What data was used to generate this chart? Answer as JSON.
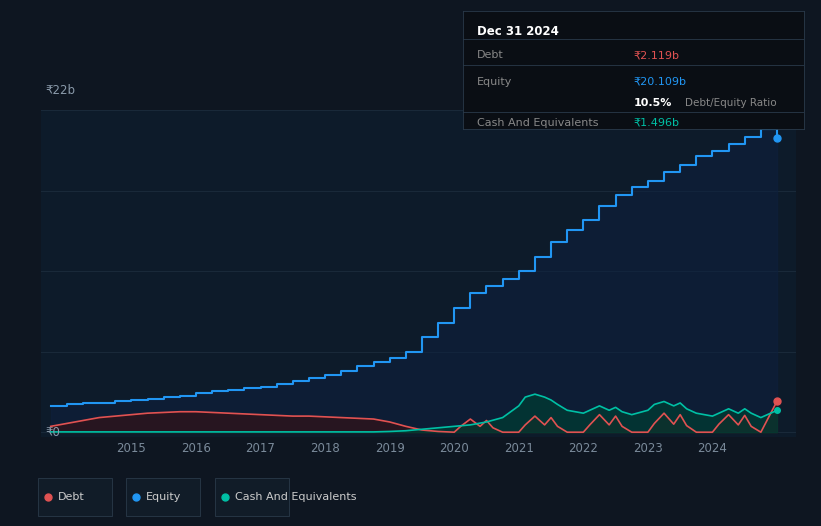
{
  "bg_color": "#0e1621",
  "plot_bg_color": "#0d1b2a",
  "grid_color": "#1a2a3a",
  "title": "Dec 31 2024",
  "y_label": "₹22b",
  "y_zero_label": "₹0",
  "x_ticks": [
    2015,
    2016,
    2017,
    2018,
    2019,
    2020,
    2021,
    2022,
    2023,
    2024
  ],
  "debt_color": "#e05252",
  "equity_color": "#2196f3",
  "cash_color": "#00bfa5",
  "debt_fill_color": "#3d1010",
  "equity_fill_color": "#0d2040",
  "cash_fill_color": "#003d33",
  "tooltip_bg": "#0a0e14",
  "tooltip_border": "#2a3a4a",
  "tooltip_title_color": "#ffffff",
  "tooltip_label_color": "#888888",
  "tooltip_debt_color": "#e05252",
  "tooltip_equity_color": "#2196f3",
  "tooltip_cash_color": "#00bfa5",
  "tooltip_ratio_bold_color": "#ffffff",
  "tooltip_ratio_text_color": "#888888",
  "ylim": [
    -0.3,
    22
  ],
  "xlim_start": 2013.6,
  "xlim_end": 2025.3,
  "equity_x": [
    2013.75,
    2014.0,
    2014.25,
    2014.5,
    2014.75,
    2015.0,
    2015.25,
    2015.5,
    2015.75,
    2016.0,
    2016.25,
    2016.5,
    2016.75,
    2017.0,
    2017.25,
    2017.5,
    2017.75,
    2018.0,
    2018.25,
    2018.5,
    2018.75,
    2019.0,
    2019.25,
    2019.5,
    2019.75,
    2020.0,
    2020.25,
    2020.5,
    2020.75,
    2021.0,
    2021.25,
    2021.5,
    2021.75,
    2022.0,
    2022.25,
    2022.5,
    2022.75,
    2023.0,
    2023.25,
    2023.5,
    2023.75,
    2024.0,
    2024.25,
    2024.5,
    2024.75,
    2025.0
  ],
  "equity_y": [
    1.8,
    1.9,
    2.0,
    2.0,
    2.1,
    2.2,
    2.3,
    2.4,
    2.5,
    2.7,
    2.8,
    2.9,
    3.0,
    3.1,
    3.3,
    3.5,
    3.7,
    3.9,
    4.2,
    4.5,
    4.8,
    5.1,
    5.5,
    6.5,
    7.5,
    8.5,
    9.5,
    10.0,
    10.5,
    11.0,
    12.0,
    13.0,
    13.8,
    14.5,
    15.5,
    16.2,
    16.8,
    17.2,
    17.8,
    18.3,
    18.9,
    19.2,
    19.7,
    20.2,
    20.7,
    20.109
  ],
  "debt_x": [
    2013.75,
    2014.0,
    2014.25,
    2014.5,
    2014.75,
    2015.0,
    2015.25,
    2015.5,
    2015.75,
    2016.0,
    2016.25,
    2016.5,
    2016.75,
    2017.0,
    2017.25,
    2017.5,
    2017.75,
    2018.0,
    2018.25,
    2018.5,
    2018.75,
    2019.0,
    2019.25,
    2019.5,
    2019.75,
    2020.0,
    2020.1,
    2020.25,
    2020.4,
    2020.5,
    2020.6,
    2020.75,
    2021.0,
    2021.1,
    2021.25,
    2021.4,
    2021.5,
    2021.6,
    2021.75,
    2022.0,
    2022.1,
    2022.25,
    2022.4,
    2022.5,
    2022.6,
    2022.75,
    2023.0,
    2023.1,
    2023.25,
    2023.4,
    2023.5,
    2023.6,
    2023.75,
    2024.0,
    2024.1,
    2024.25,
    2024.4,
    2024.5,
    2024.6,
    2024.75,
    2025.0
  ],
  "debt_y": [
    0.4,
    0.6,
    0.8,
    1.0,
    1.1,
    1.2,
    1.3,
    1.35,
    1.4,
    1.4,
    1.35,
    1.3,
    1.25,
    1.2,
    1.15,
    1.1,
    1.1,
    1.05,
    1.0,
    0.95,
    0.9,
    0.7,
    0.4,
    0.15,
    0.05,
    0.0,
    0.4,
    0.9,
    0.4,
    0.8,
    0.3,
    0.0,
    0.0,
    0.5,
    1.1,
    0.5,
    1.0,
    0.4,
    0.0,
    0.0,
    0.5,
    1.2,
    0.5,
    1.1,
    0.4,
    0.0,
    0.0,
    0.6,
    1.3,
    0.55,
    1.2,
    0.45,
    0.0,
    0.0,
    0.55,
    1.2,
    0.5,
    1.15,
    0.4,
    0.0,
    2.119
  ],
  "cash_x": [
    2013.75,
    2014.0,
    2014.25,
    2014.5,
    2014.75,
    2015.0,
    2015.25,
    2015.5,
    2015.75,
    2016.0,
    2016.25,
    2016.5,
    2016.75,
    2017.0,
    2017.25,
    2017.5,
    2017.75,
    2018.0,
    2018.25,
    2018.5,
    2018.75,
    2019.0,
    2019.25,
    2019.5,
    2019.75,
    2020.0,
    2020.25,
    2020.5,
    2020.75,
    2021.0,
    2021.1,
    2021.25,
    2021.4,
    2021.5,
    2021.6,
    2021.75,
    2022.0,
    2022.1,
    2022.25,
    2022.4,
    2022.5,
    2022.6,
    2022.75,
    2023.0,
    2023.1,
    2023.25,
    2023.4,
    2023.5,
    2023.6,
    2023.75,
    2024.0,
    2024.1,
    2024.25,
    2024.4,
    2024.5,
    2024.6,
    2024.75,
    2025.0
  ],
  "cash_y": [
    0.02,
    0.02,
    0.02,
    0.02,
    0.02,
    0.02,
    0.02,
    0.02,
    0.02,
    0.02,
    0.02,
    0.02,
    0.02,
    0.02,
    0.02,
    0.02,
    0.02,
    0.02,
    0.02,
    0.02,
    0.02,
    0.05,
    0.1,
    0.2,
    0.3,
    0.4,
    0.5,
    0.7,
    1.0,
    1.8,
    2.4,
    2.6,
    2.4,
    2.2,
    1.9,
    1.5,
    1.3,
    1.5,
    1.8,
    1.5,
    1.7,
    1.4,
    1.2,
    1.5,
    1.9,
    2.1,
    1.8,
    2.0,
    1.6,
    1.3,
    1.1,
    1.3,
    1.6,
    1.3,
    1.6,
    1.3,
    1.0,
    1.496
  ]
}
